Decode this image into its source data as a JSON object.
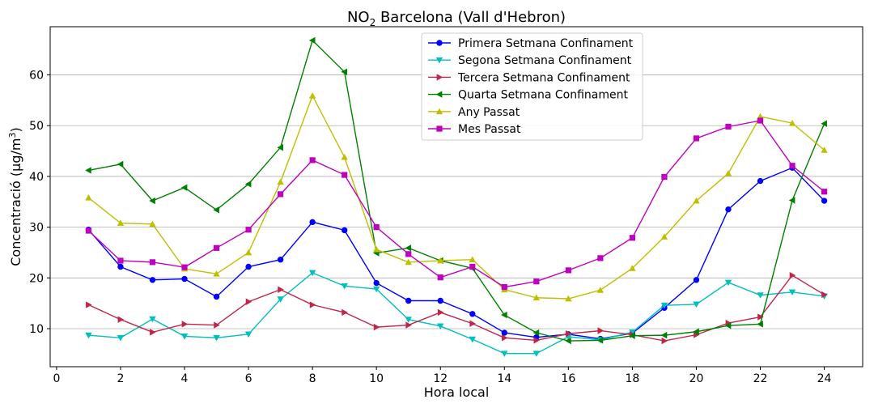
{
  "chart_data": {
    "type": "line",
    "title_main": "NO",
    "title_sub": "2",
    "title_rest": " Barcelona (Vall d'Hebron)",
    "xlabel": "Hora local",
    "ylabel_main": "Concentració (µg/m",
    "ylabel_sup": "3",
    "ylabel_end": ")",
    "xlim": [
      -0.2,
      25.2
    ],
    "ylim": [
      2.5,
      69.5
    ],
    "xticks": [
      0,
      2,
      4,
      6,
      8,
      10,
      12,
      14,
      16,
      18,
      20,
      22,
      24
    ],
    "yticks": [
      10,
      20,
      30,
      40,
      50,
      60
    ],
    "grid": "horizontal",
    "legend_position": "top-center",
    "x": [
      1,
      2,
      3,
      4,
      5,
      6,
      7,
      8,
      9,
      10,
      11,
      12,
      13,
      14,
      15,
      16,
      17,
      18,
      19,
      20,
      21,
      22,
      23,
      24
    ],
    "series": [
      {
        "name": "Primera Setmana Confinament",
        "color": "#0000ff",
        "marker": "circle",
        "values": [
          29.5,
          22.2,
          19.6,
          19.8,
          16.3,
          22.2,
          23.6,
          31.0,
          29.4,
          19.0,
          15.5,
          15.5,
          12.9,
          9.2,
          8.3,
          8.9,
          8.0,
          9.1,
          14.1,
          19.6,
          33.5,
          39.1,
          41.7,
          35.2
        ]
      },
      {
        "name": "Segona Setmana Confinament",
        "color": "#00bfbf",
        "marker": "triangle-down",
        "values": [
          8.7,
          8.2,
          11.9,
          8.5,
          8.2,
          8.9,
          15.8,
          21.0,
          18.4,
          17.8,
          11.8,
          10.5,
          7.9,
          5.1,
          5.1,
          8.4,
          7.8,
          9.3,
          14.6,
          14.8,
          19.1,
          16.6,
          17.2,
          16.4
        ]
      },
      {
        "name": "Tercera Setmana Confinament",
        "color": "#c0264a",
        "marker": "triangle-right",
        "values": [
          14.7,
          11.8,
          9.3,
          10.9,
          10.7,
          15.3,
          17.7,
          14.7,
          13.2,
          10.3,
          10.7,
          13.2,
          11.0,
          8.2,
          7.7,
          9.0,
          9.6,
          8.8,
          7.6,
          8.8,
          11.1,
          12.3,
          20.5,
          16.7
        ]
      },
      {
        "name": "Quarta Setmana Confinament",
        "color": "#008000",
        "marker": "triangle-left",
        "values": [
          41.2,
          42.4,
          35.2,
          37.8,
          33.4,
          38.5,
          45.7,
          66.8,
          60.6,
          24.9,
          25.9,
          23.4,
          21.9,
          12.7,
          9.2,
          7.6,
          7.7,
          8.6,
          8.7,
          9.4,
          10.6,
          10.9,
          35.3,
          50.4
        ]
      },
      {
        "name": "Any Passat",
        "color": "#bfbf00",
        "marker": "triangle-up",
        "values": [
          35.8,
          30.8,
          30.6,
          21.8,
          20.8,
          25.0,
          38.9,
          55.9,
          43.8,
          25.6,
          23.1,
          23.4,
          23.6,
          17.7,
          16.1,
          15.9,
          17.6,
          21.9,
          28.1,
          35.2,
          40.6,
          51.8,
          50.5,
          45.2
        ]
      },
      {
        "name": "Mes Passat",
        "color": "#bf00bf",
        "marker": "square",
        "values": [
          29.3,
          23.4,
          23.1,
          22.1,
          25.9,
          29.5,
          36.5,
          43.2,
          40.3,
          30.0,
          24.7,
          20.1,
          22.2,
          18.2,
          19.3,
          21.5,
          23.9,
          27.9,
          39.9,
          47.5,
          49.8,
          51.0,
          42.1,
          37.0
        ]
      }
    ]
  }
}
